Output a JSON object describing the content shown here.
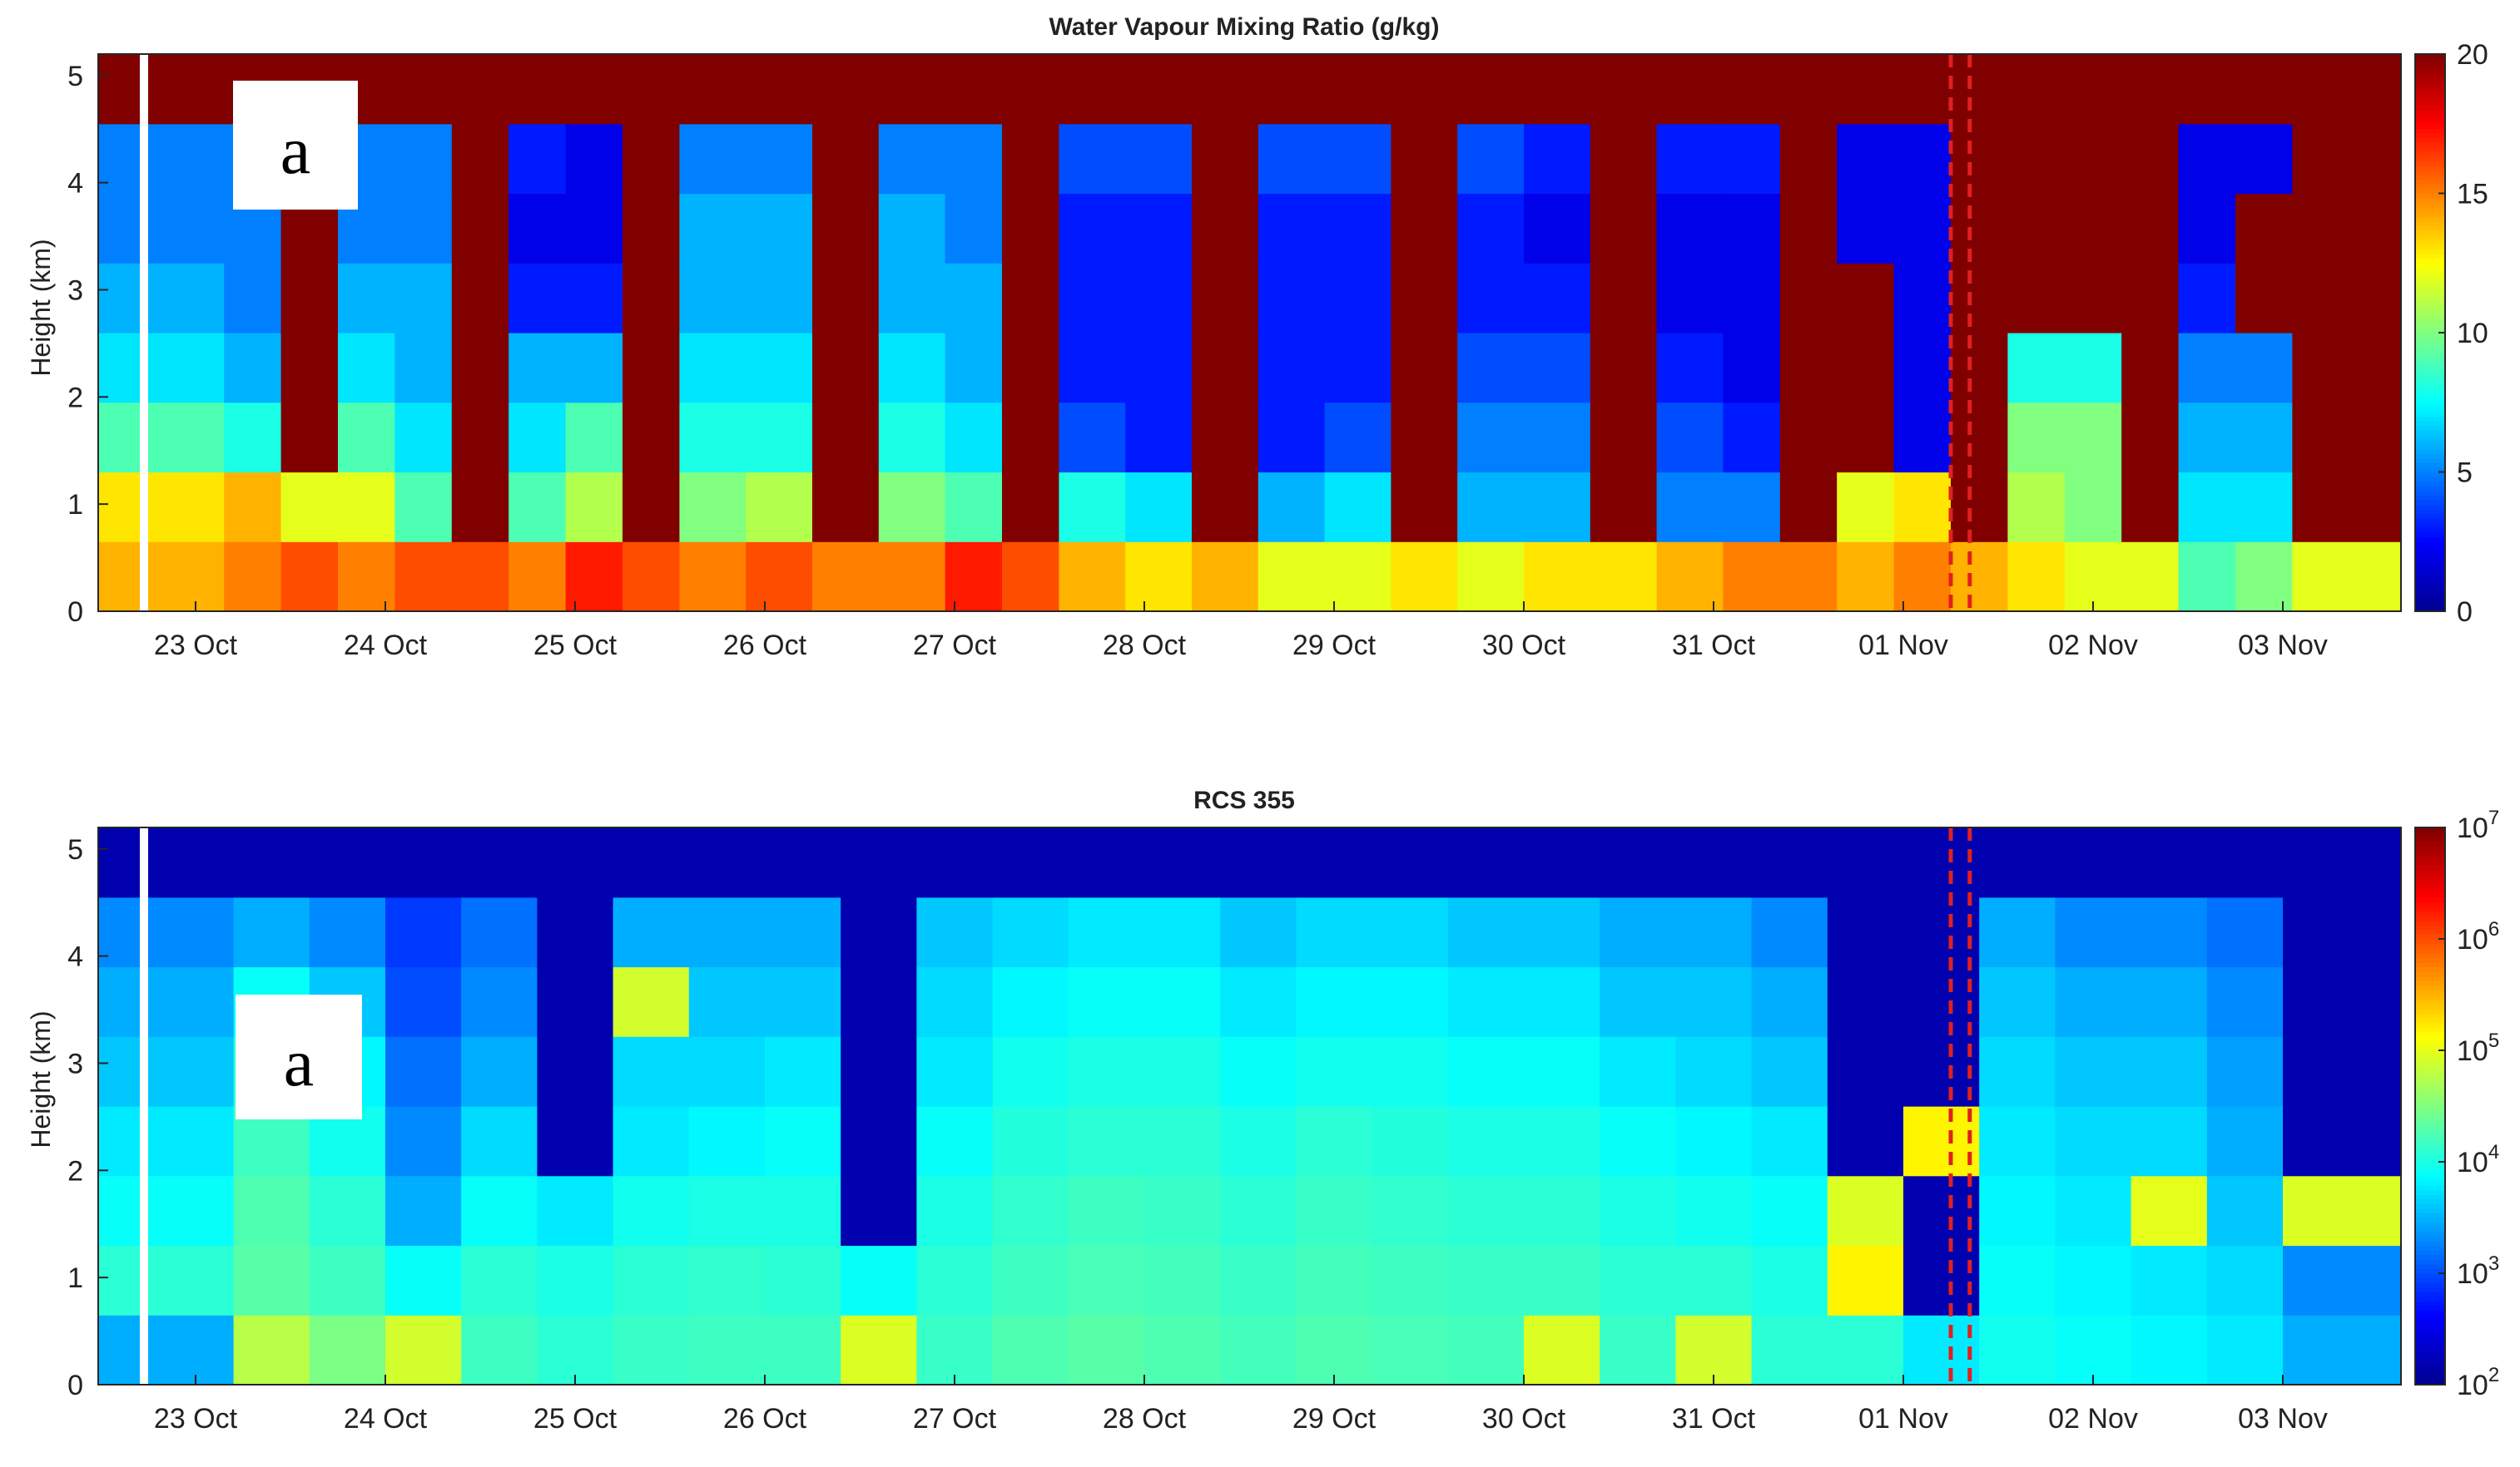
{
  "chart_data": [
    {
      "type": "heatmap",
      "title": "Water Vapour Mixing Ratio (g/kg)",
      "ylabel": "Height (km)",
      "xlabel": "",
      "xtick_labels": [
        "23 Oct",
        "24 Oct",
        "25 Oct",
        "26 Oct",
        "27 Oct",
        "28 Oct",
        "29 Oct",
        "30 Oct",
        "31 Oct",
        "01 Nov",
        "02 Nov",
        "03 Nov"
      ],
      "ytick_labels": [
        "0",
        "1",
        "2",
        "3",
        "4",
        "5"
      ],
      "ylim": [
        0,
        5.2
      ],
      "colorbar": {
        "scale": "linear",
        "range": [
          0,
          20
        ],
        "tick_labels": [
          "0",
          "5",
          "10",
          "15",
          "20"
        ]
      },
      "colormap": [
        "#00008f",
        "#0000ff",
        "#0080ff",
        "#00ffff",
        "#80ff80",
        "#ffff00",
        "#ff8000",
        "#ff0000",
        "#800000"
      ],
      "panel_letter": "a",
      "marker_lines": {
        "color": "#e02020",
        "style": "dashed",
        "day_offsets": [
          9.25,
          9.35
        ]
      },
      "profiles": [
        {
          "day_offset": 0.0,
          "values": [
            14,
            13,
            9,
            7,
            6,
            5,
            5,
            20
          ]
        },
        {
          "day_offset": 0.3,
          "values": [
            15,
            14,
            8,
            6,
            5,
            5,
            5,
            20
          ]
        },
        {
          "day_offset": 0.6,
          "values": [
            16,
            12,
            20,
            20,
            20,
            20,
            20,
            20
          ]
        },
        {
          "day_offset": 0.9,
          "values": [
            15,
            12,
            9,
            7,
            6,
            5,
            5,
            20
          ]
        },
        {
          "day_offset": 1.2,
          "values": [
            16,
            9,
            7,
            6,
            6,
            5,
            5,
            20
          ]
        },
        {
          "day_offset": 1.5,
          "values": [
            16,
            20,
            20,
            20,
            20,
            20,
            20,
            20
          ]
        },
        {
          "day_offset": 1.8,
          "values": [
            15,
            9,
            7,
            6,
            3,
            2,
            3,
            20
          ]
        },
        {
          "day_offset": 2.1,
          "values": [
            17,
            11,
            9,
            6,
            3,
            2,
            2,
            20
          ]
        },
        {
          "day_offset": 2.4,
          "values": [
            16,
            20,
            20,
            20,
            20,
            20,
            20,
            20
          ]
        },
        {
          "day_offset": 2.7,
          "values": [
            15,
            10,
            8,
            7,
            6,
            6,
            5,
            20
          ]
        },
        {
          "day_offset": 3.1,
          "values": [
            16,
            11,
            8,
            7,
            6,
            6,
            5,
            20
          ]
        },
        {
          "day_offset": 3.4,
          "values": [
            15,
            20,
            20,
            20,
            20,
            20,
            20,
            20
          ]
        },
        {
          "day_offset": 3.8,
          "values": [
            15,
            10,
            8,
            7,
            6,
            6,
            5,
            20
          ]
        },
        {
          "day_offset": 4.1,
          "values": [
            17,
            9,
            7,
            6,
            6,
            5,
            5,
            20
          ]
        },
        {
          "day_offset": 4.4,
          "values": [
            16,
            20,
            20,
            20,
            20,
            20,
            20,
            20
          ]
        },
        {
          "day_offset": 4.7,
          "values": [
            14,
            8,
            4,
            3,
            3,
            3,
            4,
            20
          ]
        },
        {
          "day_offset": 5.1,
          "values": [
            13,
            7,
            3,
            3,
            3,
            3,
            4,
            20
          ]
        },
        {
          "day_offset": 5.4,
          "values": [
            14,
            20,
            20,
            20,
            20,
            20,
            20,
            20
          ]
        },
        {
          "day_offset": 5.8,
          "values": [
            12,
            6,
            3,
            3,
            3,
            3,
            4,
            20
          ]
        },
        {
          "day_offset": 6.1,
          "values": [
            12,
            7,
            4,
            3,
            3,
            3,
            4,
            20
          ]
        },
        {
          "day_offset": 6.5,
          "values": [
            13,
            20,
            20,
            20,
            20,
            20,
            20,
            20
          ]
        },
        {
          "day_offset": 6.8,
          "values": [
            12,
            6,
            5,
            4,
            3,
            3,
            4,
            20
          ]
        },
        {
          "day_offset": 7.2,
          "values": [
            13,
            6,
            5,
            4,
            3,
            2,
            3,
            20
          ]
        },
        {
          "day_offset": 7.5,
          "values": [
            13,
            20,
            20,
            20,
            20,
            20,
            20,
            20
          ]
        },
        {
          "day_offset": 7.9,
          "values": [
            14,
            5,
            4,
            3,
            2,
            2,
            3,
            20
          ]
        },
        {
          "day_offset": 8.2,
          "values": [
            15,
            5,
            3,
            2,
            2,
            2,
            3,
            20
          ]
        },
        {
          "day_offset": 8.5,
          "values": [
            15,
            20,
            20,
            20,
            20,
            20,
            20,
            20
          ]
        },
        {
          "day_offset": 8.8,
          "values": [
            14,
            12,
            20,
            20,
            20,
            2,
            2,
            20
          ]
        },
        {
          "day_offset": 9.1,
          "values": [
            15,
            13,
            2,
            2,
            2,
            2,
            2,
            20
          ]
        },
        {
          "day_offset": 9.4,
          "values": [
            14,
            20,
            20,
            20,
            20,
            20,
            20,
            20
          ]
        },
        {
          "day_offset": 9.7,
          "values": [
            13,
            11,
            10,
            8,
            20,
            20,
            20,
            20
          ]
        },
        {
          "day_offset": 10.0,
          "values": [
            12,
            10,
            10,
            8,
            20,
            20,
            20,
            20
          ]
        },
        {
          "day_offset": 10.3,
          "values": [
            12,
            20,
            20,
            20,
            20,
            20,
            20,
            20
          ]
        },
        {
          "day_offset": 10.6,
          "values": [
            9,
            7,
            6,
            5,
            3,
            2,
            2,
            20
          ]
        },
        {
          "day_offset": 10.9,
          "values": [
            10,
            7,
            6,
            5,
            20,
            20,
            2,
            20
          ]
        },
        {
          "day_offset": 11.2,
          "values": [
            12,
            20,
            20,
            20,
            20,
            20,
            20,
            20
          ]
        }
      ]
    },
    {
      "type": "heatmap",
      "title": "RCS 355",
      "ylabel": "Height (km)",
      "xlabel": "",
      "xtick_labels": [
        "23 Oct",
        "24 Oct",
        "25 Oct",
        "26 Oct",
        "27 Oct",
        "28 Oct",
        "29 Oct",
        "30 Oct",
        "31 Oct",
        "01 Nov",
        "02 Nov",
        "03 Nov"
      ],
      "ytick_labels": [
        "0",
        "1",
        "2",
        "3",
        "4",
        "5"
      ],
      "ylim": [
        0,
        5.2
      ],
      "colorbar": {
        "scale": "log",
        "range": [
          100,
          10000000
        ],
        "tick_labels": [
          "10",
          "10",
          "10",
          "10",
          "10",
          "10"
        ],
        "tick_exponents": [
          "2",
          "3",
          "4",
          "5",
          "6",
          "7"
        ]
      },
      "colormap": [
        "#00008f",
        "#0000ff",
        "#0080ff",
        "#00ffff",
        "#80ff80",
        "#ffff00",
        "#ff8000",
        "#ff0000",
        "#800000"
      ],
      "panel_letter": "a",
      "marker_lines": {
        "color": "#e02020",
        "style": "dashed",
        "day_offsets": [
          9.25,
          9.35
        ]
      },
      "profiles": [
        {
          "day_offset": 0.0,
          "values": [
            3000,
            12000,
            8000,
            6000,
            4000,
            3000,
            2000,
            150
          ]
        },
        {
          "day_offset": 0.4,
          "values": [
            60000,
            20000,
            18000,
            15000,
            12000,
            8000,
            3000,
            150
          ]
        },
        {
          "day_offset": 0.8,
          "values": [
            30000,
            15000,
            12000,
            9000,
            7000,
            4000,
            2000,
            150
          ]
        },
        {
          "day_offset": 1.2,
          "values": [
            80000,
            8000,
            3000,
            2000,
            1500,
            1000,
            800,
            150
          ]
        },
        {
          "day_offset": 1.6,
          "values": [
            15000,
            12000,
            8000,
            5000,
            3000,
            2000,
            1500,
            150
          ]
        },
        {
          "day_offset": 2.0,
          "values": [
            12000,
            10000,
            6000,
            150,
            150,
            150,
            150,
            150
          ]
        },
        {
          "day_offset": 2.4,
          "values": [
            14000,
            12000,
            9000,
            6000,
            5000,
            80000,
            3000,
            150
          ]
        },
        {
          "day_offset": 2.8,
          "values": [
            15000,
            13000,
            10000,
            7000,
            5000,
            4000,
            3000,
            150
          ]
        },
        {
          "day_offset": 3.2,
          "values": [
            15000,
            12000,
            10000,
            8000,
            6000,
            4000,
            3000,
            150
          ]
        },
        {
          "day_offset": 3.6,
          "values": [
            90000,
            8000,
            150,
            150,
            150,
            150,
            150,
            150
          ]
        },
        {
          "day_offset": 4.0,
          "values": [
            14000,
            12000,
            10000,
            8000,
            6000,
            5000,
            4000,
            150
          ]
        },
        {
          "day_offset": 4.4,
          "values": [
            18000,
            15000,
            13000,
            11000,
            9000,
            7000,
            5000,
            150
          ]
        },
        {
          "day_offset": 4.8,
          "values": [
            20000,
            17000,
            15000,
            12000,
            10000,
            8000,
            6000,
            150
          ]
        },
        {
          "day_offset": 5.2,
          "values": [
            18000,
            16000,
            14000,
            12000,
            10000,
            8000,
            6000,
            150
          ]
        },
        {
          "day_offset": 5.6,
          "values": [
            16000,
            14000,
            12000,
            10000,
            8000,
            6000,
            4000,
            150
          ]
        },
        {
          "day_offset": 6.0,
          "values": [
            18000,
            16000,
            14000,
            12000,
            9000,
            7000,
            5000,
            150
          ]
        },
        {
          "day_offset": 6.4,
          "values": [
            17000,
            15000,
            13000,
            11000,
            9000,
            7000,
            5000,
            150
          ]
        },
        {
          "day_offset": 6.8,
          "values": [
            16000,
            14000,
            12000,
            10000,
            8000,
            6000,
            4000,
            150
          ]
        },
        {
          "day_offset": 7.2,
          "values": [
            90000,
            14000,
            12000,
            10000,
            8000,
            6000,
            4000,
            150
          ]
        },
        {
          "day_offset": 7.6,
          "values": [
            14000,
            12000,
            10000,
            8000,
            6000,
            4000,
            3000,
            150
          ]
        },
        {
          "day_offset": 8.0,
          "values": [
            80000,
            12000,
            9000,
            7000,
            5000,
            4000,
            3000,
            150
          ]
        },
        {
          "day_offset": 8.4,
          "values": [
            12000,
            10000,
            8000,
            6000,
            4000,
            3000,
            2000,
            150
          ]
        },
        {
          "day_offset": 8.8,
          "values": [
            12000,
            150000,
            90000,
            150,
            150,
            150,
            150,
            150
          ]
        },
        {
          "day_offset": 9.2,
          "values": [
            6000,
            150,
            150,
            150000,
            150,
            150,
            150,
            150
          ]
        },
        {
          "day_offset": 9.6,
          "values": [
            9000,
            8000,
            7000,
            6000,
            5000,
            4000,
            3000,
            150
          ]
        },
        {
          "day_offset": 10.0,
          "values": [
            8000,
            7000,
            6000,
            5000,
            4000,
            3000,
            2000,
            150
          ]
        },
        {
          "day_offset": 10.4,
          "values": [
            7000,
            6000,
            100000,
            5000,
            4000,
            3000,
            2000,
            150
          ]
        },
        {
          "day_offset": 10.8,
          "values": [
            6000,
            5000,
            4000,
            3000,
            2500,
            2000,
            1500,
            150
          ]
        },
        {
          "day_offset": 11.2,
          "values": [
            3000,
            2000,
            90000,
            150,
            150,
            150,
            150,
            150
          ]
        }
      ]
    }
  ]
}
